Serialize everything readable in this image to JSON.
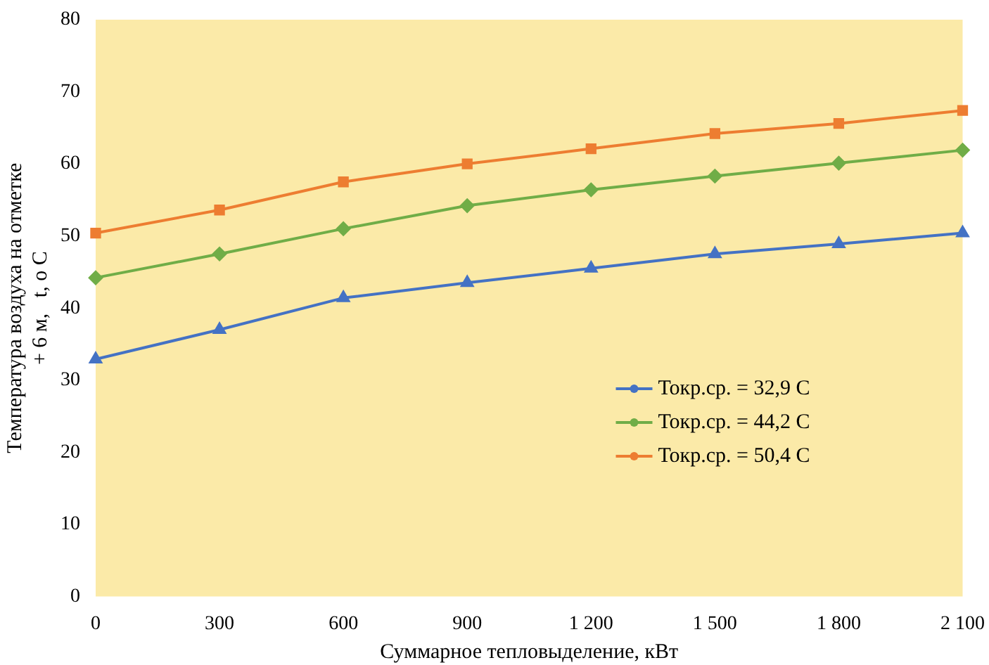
{
  "chart_data": {
    "type": "line",
    "xlabel": "Суммарное тепловыделение, кВт",
    "ylabel": "Температура воздуха на отметке\n+ 6 м,   t, o C",
    "categories": [
      "0",
      "300",
      "600",
      "900",
      "1 200",
      "1 500",
      "1 800",
      "2 100"
    ],
    "series": [
      {
        "name": "Токр.ср. = 32,9 C",
        "color": "#4472c4",
        "marker": "triangle",
        "values": [
          32.9,
          37,
          41.4,
          43.5,
          45.5,
          47.5,
          48.9,
          50.4
        ]
      },
      {
        "name": "Токр.ср. = 44,2 C",
        "color": "#70ad47",
        "marker": "diamond",
        "values": [
          44.2,
          47.5,
          51,
          54.2,
          56.4,
          58.3,
          60.1,
          61.9
        ]
      },
      {
        "name": "Токр.ср. = 50,4 C",
        "color": "#ed7d31",
        "marker": "square",
        "values": [
          50.4,
          53.6,
          57.5,
          60,
          62.1,
          64.2,
          65.6,
          67.4
        ]
      }
    ],
    "ylim": [
      0,
      80
    ],
    "yticks": [
      0,
      10,
      20,
      30,
      40,
      50,
      60,
      70,
      80
    ],
    "grid": false,
    "legend": "bottom right"
  }
}
